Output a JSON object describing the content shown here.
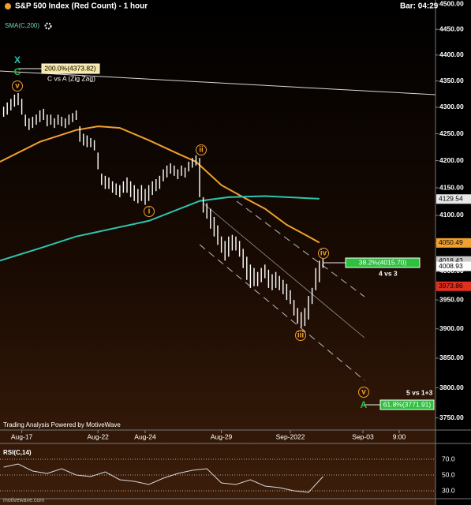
{
  "chart_data": [
    {
      "type": "ohlc",
      "title": "S&P 500 Index (Red Count) - 1 hour",
      "bar_time": "Bar: 04:29",
      "indicator_label": "SMA(C,200)",
      "log_scale": true,
      "xlim": [
        -1,
        119
      ],
      "xticks": [
        {
          "value": 5,
          "label": "Aug-17"
        },
        {
          "value": 26,
          "label": "Aug-22"
        },
        {
          "value": 39,
          "label": "Aug-24"
        },
        {
          "value": 60,
          "label": "Aug-29"
        },
        {
          "value": 79,
          "label": "Sep-2022"
        },
        {
          "value": 99,
          "label": "Sep-03"
        },
        {
          "value": 109,
          "label": "9:00"
        }
      ],
      "ylim": [
        3730,
        4508
      ],
      "yticks": [
        {
          "value": 4500,
          "label": "4500.00"
        },
        {
          "value": 4450,
          "label": "4450.00"
        },
        {
          "value": 4400,
          "label": "4400.00"
        },
        {
          "value": 4350,
          "label": "4350.00"
        },
        {
          "value": 4300,
          "label": "4300.00"
        },
        {
          "value": 4250,
          "label": "4250.00"
        },
        {
          "value": 4200,
          "label": "4200.00"
        },
        {
          "value": 4150,
          "label": "4150.00"
        },
        {
          "value": 4100,
          "label": "4100.00"
        },
        {
          "value": 4050,
          "label": "4050.00"
        },
        {
          "value": 4000,
          "label": "4000.00"
        },
        {
          "value": 3950,
          "label": "3950.00"
        },
        {
          "value": 3900,
          "label": "3900.00"
        },
        {
          "value": 3850,
          "label": "3850.00"
        },
        {
          "value": 3800,
          "label": "3800.00"
        },
        {
          "value": 3750,
          "label": "3750.00"
        }
      ],
      "bar_color": "#ffffff",
      "high": [
        4301,
        4309,
        4316,
        4324,
        4327,
        4316,
        4286,
        4279,
        4282,
        4286,
        4294,
        4297,
        4286,
        4286,
        4279,
        4286,
        4282,
        4279,
        4286,
        4289,
        4294,
        4264,
        4250,
        4247,
        4242,
        4238,
        4215,
        4176,
        4172,
        4169,
        4162,
        4158,
        4155,
        4162,
        4169,
        4162,
        4155,
        4148,
        4155,
        4148,
        4155,
        4162,
        4166,
        4172,
        4184,
        4191,
        4195,
        4191,
        4184,
        4191,
        4187,
        4198,
        4205,
        4210,
        4205,
        4133,
        4122,
        4112,
        4097,
        4082,
        4062,
        4054,
        4062,
        4065,
        4062,
        4054,
        4040,
        4026,
        4012,
        4006,
        3999,
        4006,
        4012,
        4003,
        3995,
        3999,
        3992,
        3985,
        3978,
        3967,
        3950,
        3936,
        3929,
        3936,
        3957,
        3971,
        4006,
        4019,
        4022
      ],
      "low": [
        4282,
        4286,
        4294,
        4301,
        4304,
        4286,
        4264,
        4257,
        4261,
        4267,
        4272,
        4276,
        4264,
        4267,
        4261,
        4267,
        4264,
        4261,
        4267,
        4272,
        4276,
        4235,
        4228,
        4225,
        4225,
        4219,
        4184,
        4155,
        4148,
        4148,
        4141,
        4137,
        4133,
        4141,
        4141,
        4133,
        4126,
        4122,
        4126,
        4119,
        4126,
        4137,
        4144,
        4148,
        4162,
        4169,
        4176,
        4172,
        4166,
        4172,
        4169,
        4180,
        4187,
        4191,
        4133,
        4105,
        4094,
        4076,
        4062,
        4047,
        4033,
        4019,
        4026,
        4037,
        4037,
        4026,
        4006,
        3985,
        3971,
        3974,
        3974,
        3981,
        3988,
        3971,
        3967,
        3971,
        3967,
        3960,
        3950,
        3943,
        3923,
        3909,
        3902,
        3905,
        3916,
        3943,
        3967,
        3981,
        4006
      ],
      "lines": [
        {
          "color": "#f0a030",
          "x": [
            -1,
            10,
            20,
            26,
            32,
            40,
            48,
            53,
            60,
            66,
            72,
            78,
            84,
            87
          ],
          "values": [
            4198,
            4235,
            4257,
            4264,
            4261,
            4238,
            4213,
            4198,
            4155,
            4133,
            4112,
            4083,
            4062,
            4051
          ]
        },
        {
          "color": "#2ec4b0",
          "x": [
            -1,
            10,
            20,
            40,
            54,
            62,
            72,
            87
          ],
          "values": [
            4019,
            4041,
            4062,
            4090,
            4126,
            4133,
            4135,
            4130
          ]
        }
      ],
      "price_labels": [
        {
          "value": 4129.54,
          "color": "#e8e8e8"
        },
        {
          "value": 4050.49,
          "color": "#f0a030"
        },
        {
          "value": 4018.43,
          "color": "#c8c8c8"
        },
        {
          "value": 4008.93,
          "color": "#ffffff"
        },
        {
          "value": 3973.86,
          "color": "#e03020"
        }
      ],
      "wave_labels": [
        "X",
        "C",
        "v",
        "i",
        "ii",
        "iii",
        "iv",
        "v",
        "A"
      ],
      "fib_labels": [
        "200.0%(4373.82)",
        "C vs A (Zig Zag)",
        "38.2%(4015.70)",
        "4 vs 3",
        "5 vs 1+3",
        "61.8%(3771.91)"
      ],
      "credit": "Trading Analysis Powered by MotiveWave"
    },
    {
      "type": "line",
      "label": "RSI(C,14)",
      "xlim": [
        -1,
        119
      ],
      "ylim": [
        20,
        87
      ],
      "yticks": [
        {
          "value": 70,
          "label": "70.0"
        },
        {
          "value": 50,
          "label": "50.0"
        },
        {
          "value": 30,
          "label": "30.0"
        }
      ],
      "color": "#d8d8d8",
      "x": [
        0,
        4,
        8,
        12,
        16,
        20,
        24,
        28,
        32,
        36,
        40,
        44,
        48,
        52,
        56,
        60,
        64,
        68,
        72,
        76,
        80,
        84,
        88
      ],
      "values": [
        60,
        64,
        55,
        52,
        58,
        50,
        48,
        54,
        44,
        42,
        38,
        46,
        52,
        56,
        58,
        40,
        38,
        44,
        36,
        34,
        30,
        28,
        48
      ]
    }
  ],
  "watermark": "motivewave.com"
}
